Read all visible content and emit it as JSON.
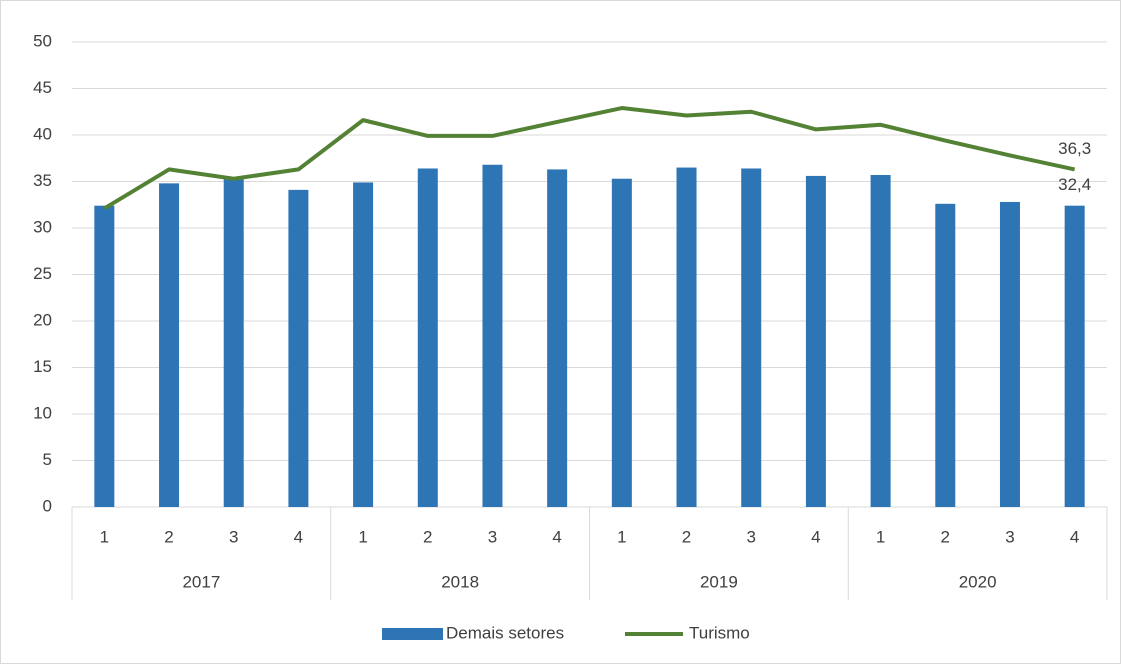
{
  "chart_data": {
    "type": "bar+line",
    "categories": [
      "1",
      "2",
      "3",
      "4",
      "1",
      "2",
      "3",
      "4",
      "1",
      "2",
      "3",
      "4",
      "1",
      "2",
      "3",
      "4"
    ],
    "category_groups": [
      "2017",
      "2018",
      "2019",
      "2020"
    ],
    "series": [
      {
        "name": "Demais setores",
        "type": "bar",
        "color": "#2e75b6",
        "values": [
          32.4,
          34.8,
          35.4,
          34.1,
          34.9,
          36.4,
          36.8,
          36.3,
          35.3,
          36.5,
          36.4,
          35.6,
          35.7,
          32.6,
          32.8,
          32.4
        ],
        "value_labels": [
          null,
          null,
          null,
          null,
          null,
          null,
          null,
          null,
          null,
          null,
          null,
          null,
          null,
          null,
          null,
          "32,4"
        ]
      },
      {
        "name": "Turismo",
        "type": "line",
        "color": "#548235",
        "values": [
          32.1,
          36.3,
          35.3,
          36.3,
          41.6,
          39.9,
          39.9,
          41.4,
          42.9,
          42.1,
          42.5,
          40.6,
          41.1,
          39.4,
          37.8,
          36.3
        ],
        "value_labels": [
          null,
          null,
          null,
          null,
          null,
          null,
          null,
          null,
          null,
          null,
          null,
          null,
          null,
          null,
          null,
          "36,3"
        ]
      }
    ],
    "ylim": [
      0,
      50
    ],
    "yticks": [
      0,
      5,
      10,
      15,
      20,
      25,
      30,
      35,
      40,
      45,
      50
    ],
    "grid": true,
    "legend": "bottom"
  }
}
